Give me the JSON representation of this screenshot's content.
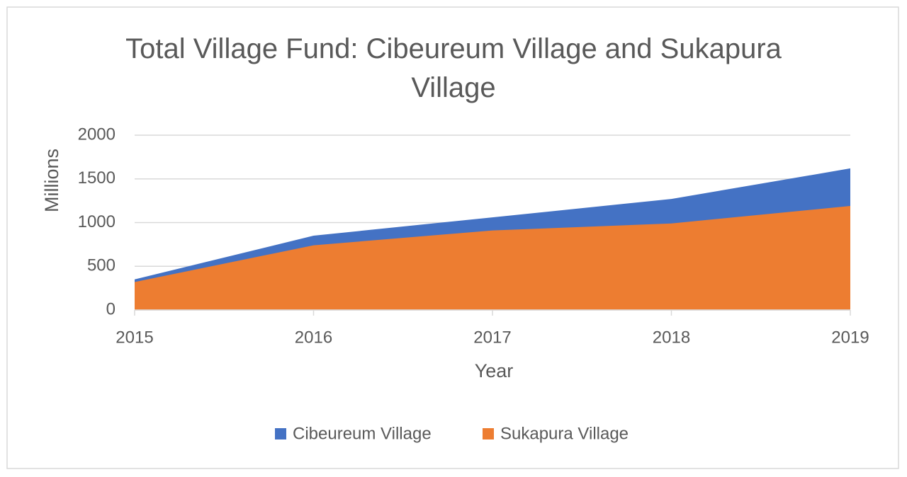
{
  "chart_data": {
    "type": "area",
    "title": "Total Village Fund: Cibeureum Village and Sukapura Village",
    "x_label": "Year",
    "y_label": "Millions",
    "x": [
      2015,
      2016,
      2017,
      2018,
      2019
    ],
    "xlim": [
      2015,
      2019
    ],
    "xticks": [
      2015,
      2016,
      2017,
      2018,
      2019
    ],
    "ylim": [
      0,
      2000
    ],
    "yticks": [
      0,
      500,
      1000,
      1500,
      2000
    ],
    "grid": true,
    "legend": "bottom",
    "series": [
      {
        "name": "Cibeureum Village",
        "color": "#4472c4",
        "values": [
          350,
          850,
          1060,
          1270,
          1620
        ]
      },
      {
        "name": "Sukapura Village",
        "color": "#ed7d31",
        "values": [
          320,
          740,
          910,
          990,
          1190
        ]
      }
    ]
  }
}
